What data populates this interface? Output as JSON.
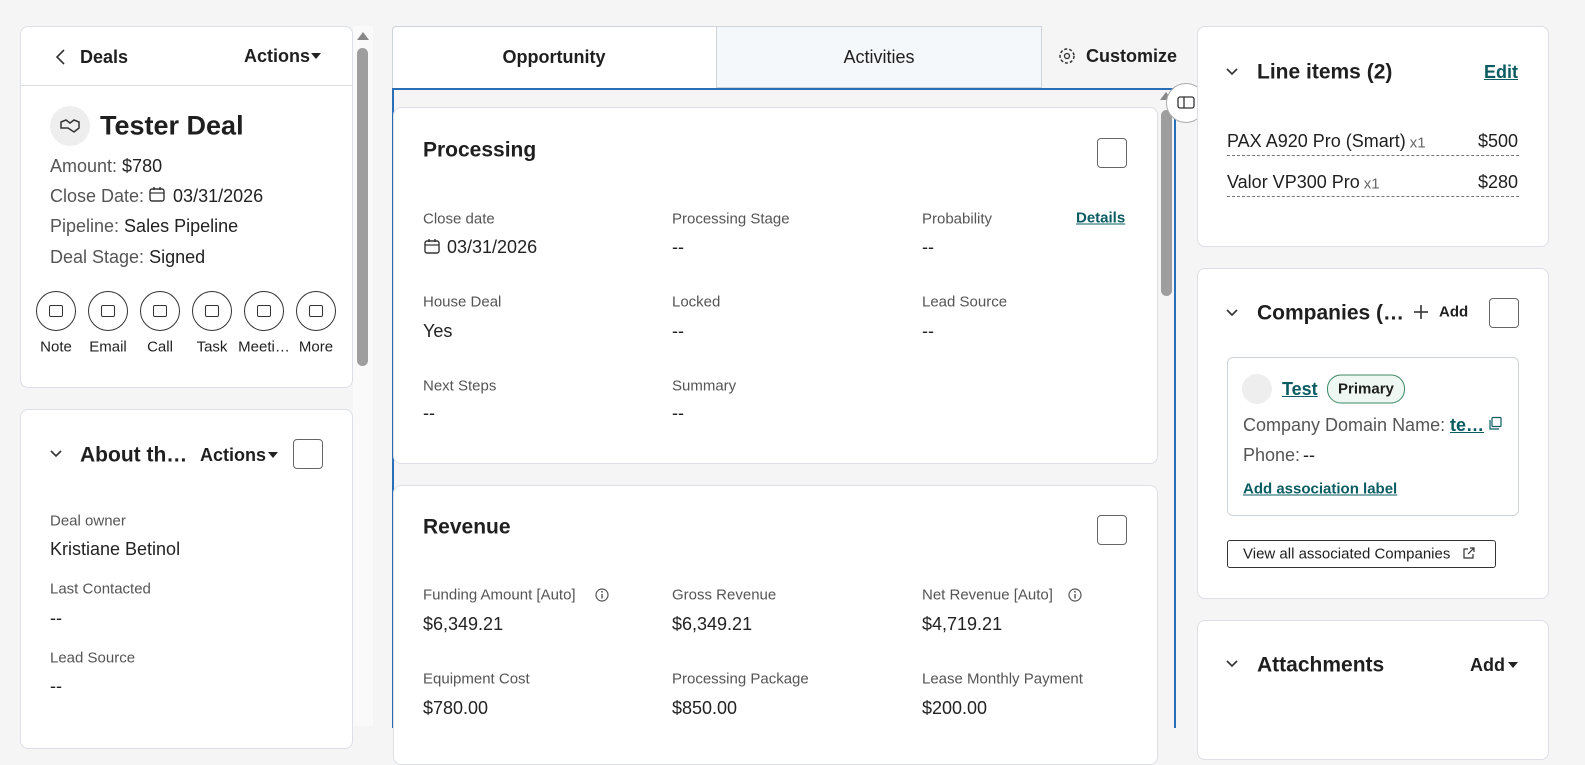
{
  "nav": {
    "back": "Deals",
    "actions": "Actions"
  },
  "record": {
    "title": "Tester Deal",
    "properties": [
      {
        "label": "Amount:",
        "value": "$780"
      },
      {
        "label": "Close Date:",
        "value": "03/31/2026"
      },
      {
        "label": "Pipeline:",
        "value": "Sales Pipeline"
      },
      {
        "label": "Deal Stage:",
        "value": "Signed"
      }
    ],
    "quick_actions": [
      "Note",
      "Email",
      "Call",
      "Task",
      "Meeti…",
      "More"
    ]
  },
  "about": {
    "title": "About th…",
    "actions": "Actions",
    "fields": [
      {
        "label": "Deal owner",
        "value": "Kristiane Betinol"
      },
      {
        "label": "Last Contacted",
        "value": "--"
      },
      {
        "label": "Lead Source",
        "value": "--"
      }
    ]
  },
  "tabs": [
    "Opportunity",
    "Activities"
  ],
  "customize": "Customize",
  "processing": {
    "title": "Processing",
    "details": "Details",
    "fields": [
      {
        "label": "Close date",
        "value": "03/31/2026"
      },
      {
        "label": "Processing Stage",
        "value": "--"
      },
      {
        "label": "Probability",
        "value": "--"
      },
      {
        "label": "House Deal",
        "value": "Yes"
      },
      {
        "label": "Locked",
        "value": "--"
      },
      {
        "label": "Lead Source",
        "value": "--"
      },
      {
        "label": "Next Steps",
        "value": "--"
      },
      {
        "label": "Summary",
        "value": "--"
      }
    ]
  },
  "revenue": {
    "title": "Revenue",
    "fields": [
      {
        "label": "Funding Amount [Auto]",
        "value": "$6,349.21"
      },
      {
        "label": "Gross Revenue",
        "value": "$6,349.21"
      },
      {
        "label": "Net Revenue [Auto]",
        "value": "$4,719.21"
      },
      {
        "label": "Equipment Cost",
        "value": "$780.00"
      },
      {
        "label": "Processing Package",
        "value": "$850.00"
      },
      {
        "label": "Lease Monthly Payment",
        "value": "$200.00"
      }
    ]
  },
  "line_items": {
    "title": "Line items (2)",
    "edit": "Edit",
    "items": [
      {
        "name": "PAX A920 Pro (Smart)",
        "quantity": "x1",
        "price": "$500"
      },
      {
        "name": "Valor VP300 Pro",
        "quantity": "x1",
        "price": "$280"
      }
    ]
  },
  "companies": {
    "title": "Companies (…",
    "add": "Add",
    "company": {
      "name": "Test",
      "badge": "Primary",
      "domain_label": "Company Domain Name:",
      "domain_value": "te…",
      "phone_label": "Phone:",
      "phone_value": "--",
      "add_label": "Add association label"
    },
    "view_all": "View all associated Companies"
  },
  "attachments": {
    "title": "Attachments",
    "add": "Add"
  }
}
